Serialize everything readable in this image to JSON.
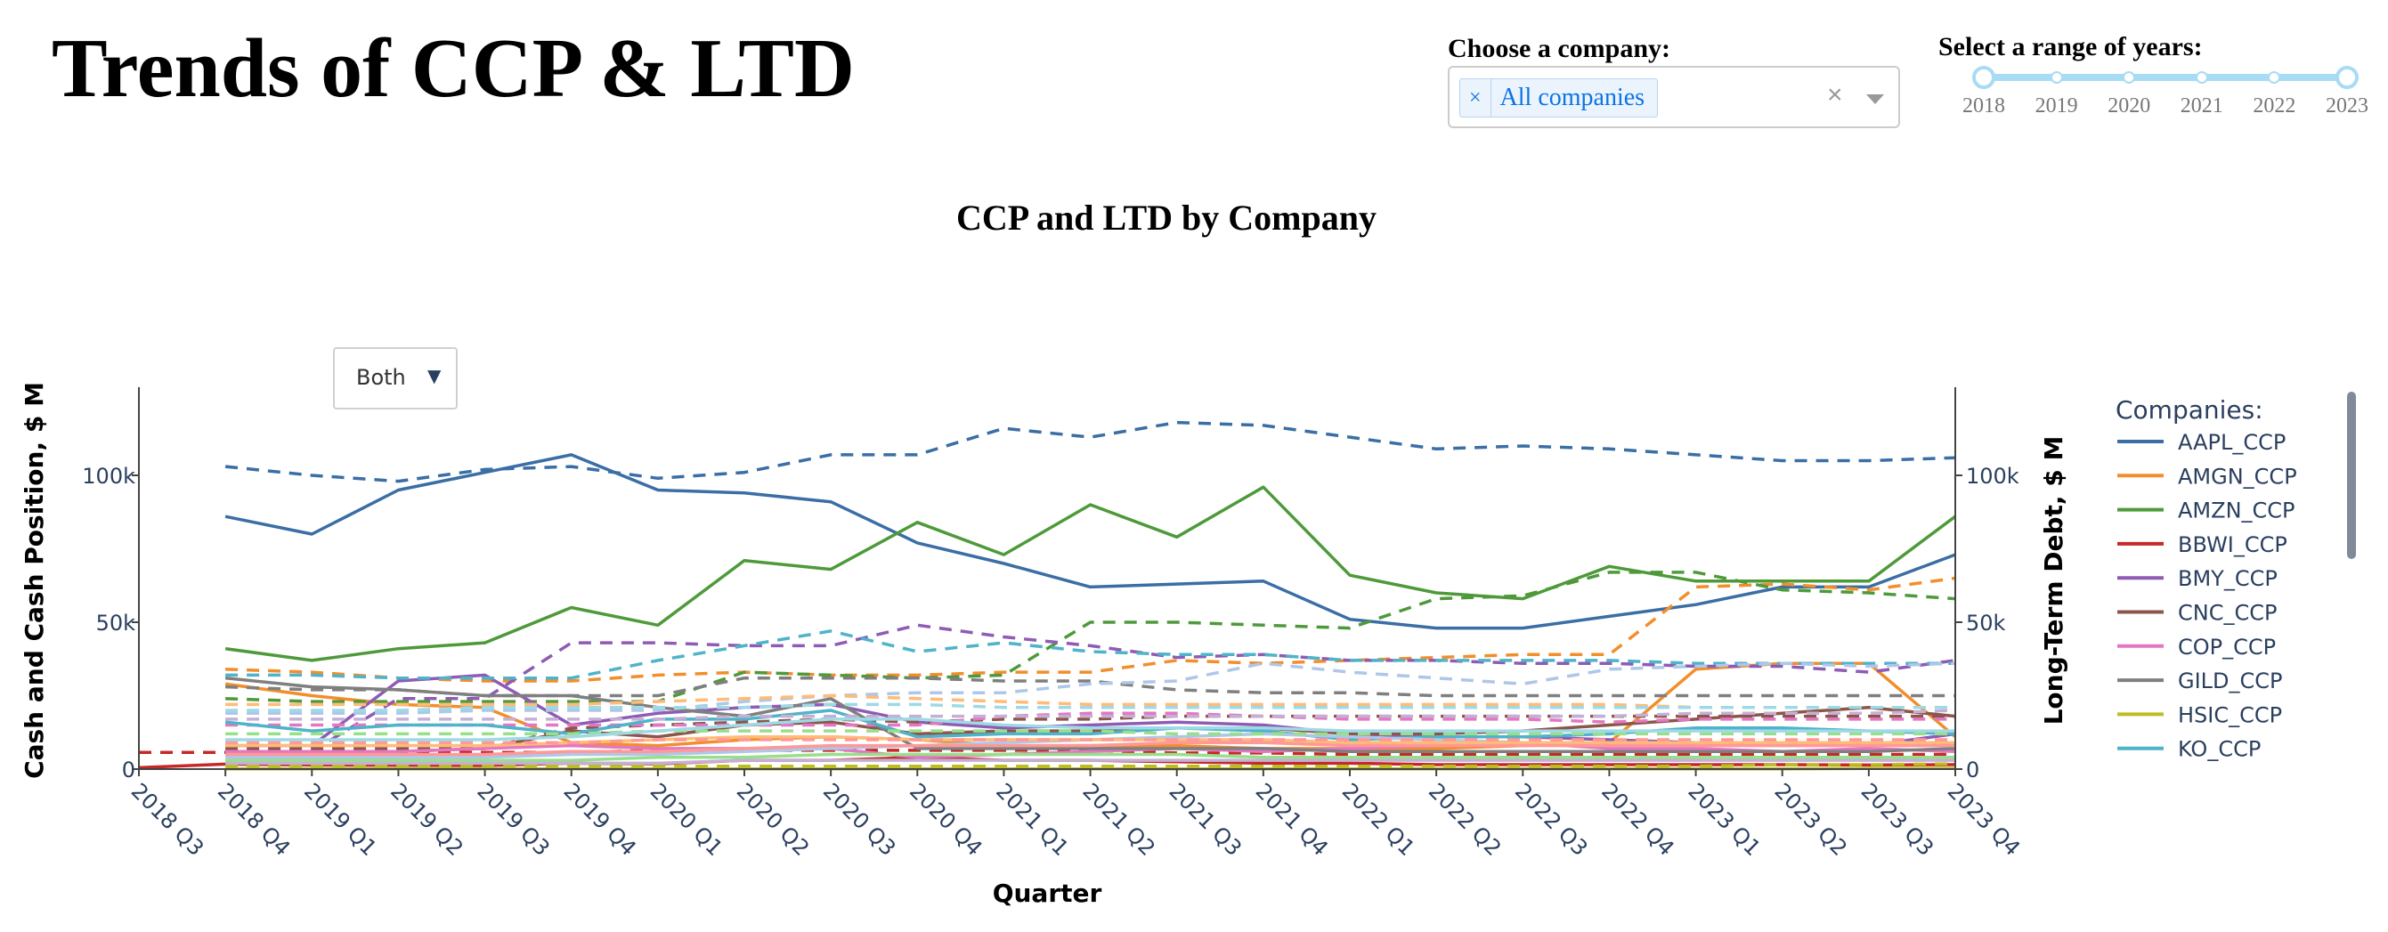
{
  "header": {
    "title": "Trends of CCP & LTD",
    "company_label": "Choose a company:",
    "company_chip": "All companies",
    "chip_remove": "×",
    "clear": "×",
    "years_label": "Select a range of years:",
    "year_marks": [
      "2018",
      "2019",
      "2020",
      "2021",
      "2022",
      "2023"
    ],
    "year_range": [
      "2018",
      "2023"
    ]
  },
  "toggle": {
    "label": "Both",
    "caret": "▼"
  },
  "colors": {
    "AAPL": "#3a6ea5",
    "AMGN": "#f28e2b",
    "AMZN": "#4e9a3a",
    "BBWI": "#c62828",
    "BMY": "#8e5bb5",
    "CNC": "#8c564b",
    "COP": "#e377c2",
    "GILD": "#7f7f7f",
    "HSIC": "#bcbd22",
    "KO": "#4fb3c9",
    "L1": "#aec7e8",
    "L2": "#ffbb78",
    "L3": "#98df8a",
    "L4": "#ff9896",
    "L5": "#c5b0d5",
    "L6": "#9edae5"
  },
  "chart_data": {
    "type": "line",
    "title": "CCP and LTD by Company",
    "xlabel": "Quarter",
    "ylabel_left": "Cash and Cash Position, $ M",
    "ylabel_right": "Long-Term Debt, $ M",
    "ylim_left": [
      0,
      130000
    ],
    "ylim_right": [
      0,
      130000
    ],
    "yticks": [
      0,
      50000,
      100000
    ],
    "ytick_labels": [
      "0",
      "50k",
      "100k"
    ],
    "x_range": [
      "2018 Q3",
      "2023 Q4"
    ],
    "categories": [
      "2018 Q3",
      "2018 Q4",
      "2019 Q1",
      "2019 Q2",
      "2019 Q3",
      "2019 Q4",
      "2020 Q1",
      "2020 Q2",
      "2020 Q3",
      "2020 Q4",
      "2021 Q1",
      "2021 Q2",
      "2021 Q3",
      "2021 Q4",
      "2022 Q1",
      "2022 Q2",
      "2022 Q3",
      "2022 Q4",
      "2023 Q1",
      "2023 Q2",
      "2023 Q3",
      "2023 Q4"
    ],
    "legend_title": "Companies:",
    "legend_entries": [
      "AAPL_CCP",
      "AMGN_CCP",
      "AMZN_CCP",
      "BBWI_CCP",
      "BMY_CCP",
      "CNC_CCP",
      "COP_CCP",
      "GILD_CCP",
      "HSIC_CCP",
      "KO_CCP"
    ],
    "legend_position": "right",
    "series": [
      {
        "name": "AAPL_CCP",
        "axis": "left",
        "dash": false,
        "color_key": "AAPL",
        "values": [
          null,
          86000,
          80000,
          95000,
          101000,
          107000,
          95000,
          94000,
          91000,
          77000,
          70000,
          62000,
          63000,
          64000,
          51000,
          48000,
          48000,
          52000,
          56000,
          62000,
          62000,
          73000
        ]
      },
      {
        "name": "AAPL_LTD",
        "axis": "right",
        "dash": true,
        "color_key": "AAPL",
        "values": [
          null,
          103000,
          100000,
          98000,
          102000,
          103000,
          99000,
          101000,
          107000,
          107000,
          116000,
          113000,
          118000,
          117000,
          113000,
          109000,
          110000,
          109000,
          107000,
          105000,
          105000,
          106000
        ]
      },
      {
        "name": "AMGN_CCP",
        "axis": "left",
        "dash": false,
        "color_key": "AMGN",
        "values": [
          null,
          29000,
          25000,
          22000,
          21000,
          9000,
          8000,
          10000,
          11000,
          10000,
          8000,
          8000,
          8000,
          7000,
          7000,
          7000,
          8000,
          9000,
          34000,
          36000,
          36000,
          11000
        ]
      },
      {
        "name": "AMGN_LTD",
        "axis": "right",
        "dash": true,
        "color_key": "AMGN",
        "values": [
          null,
          34000,
          33000,
          31000,
          30000,
          30000,
          32000,
          33000,
          32000,
          32000,
          33000,
          33000,
          37000,
          36000,
          37000,
          38000,
          39000,
          39000,
          62000,
          63000,
          61000,
          65000
        ]
      },
      {
        "name": "AMZN_CCP",
        "axis": "left",
        "dash": false,
        "color_key": "AMZN",
        "values": [
          null,
          41000,
          37000,
          41000,
          43000,
          55000,
          49000,
          71000,
          68000,
          84000,
          73000,
          90000,
          79000,
          96000,
          66000,
          60000,
          58000,
          69000,
          64000,
          64000,
          64000,
          86000
        ]
      },
      {
        "name": "AMZN_LTD",
        "axis": "right",
        "dash": true,
        "color_key": "AMZN",
        "values": [
          null,
          24000,
          23000,
          23000,
          23000,
          23000,
          23000,
          33000,
          32000,
          31000,
          32000,
          50000,
          50000,
          49000,
          48000,
          58000,
          59000,
          67000,
          67000,
          61000,
          60000,
          58000
        ]
      },
      {
        "name": "BBWI_CCP",
        "axis": "left",
        "dash": false,
        "color_key": "BBWI",
        "values": [
          500,
          1700,
          1400,
          1300,
          1200,
          2000,
          1800,
          3000,
          3000,
          4000,
          3000,
          3000,
          2500,
          2000,
          2000,
          1500,
          1500,
          1500,
          1500,
          1500,
          1400,
          1500
        ]
      },
      {
        "name": "BBWI_LTD",
        "axis": "right",
        "dash": true,
        "color_key": "BBWI",
        "values": [
          5700,
          5700,
          5700,
          5700,
          5700,
          5700,
          6400,
          6400,
          6400,
          6400,
          6400,
          6400,
          5500,
          5500,
          5000,
          5000,
          5000,
          5000,
          5000,
          5000,
          5000,
          5000
        ]
      },
      {
        "name": "BMY_CCP",
        "axis": "left",
        "dash": false,
        "color_key": "BMY",
        "values": [
          null,
          8000,
          8000,
          30000,
          32000,
          15000,
          19000,
          21000,
          22000,
          16000,
          14000,
          15000,
          16000,
          15000,
          12000,
          11000,
          11000,
          10000,
          9000,
          9000,
          8000,
          12000
        ]
      },
      {
        "name": "BMY_LTD",
        "axis": "right",
        "dash": true,
        "color_key": "BMY",
        "values": [
          null,
          6000,
          6000,
          24000,
          24000,
          43000,
          43000,
          42000,
          42000,
          49000,
          45000,
          42000,
          38000,
          39000,
          37000,
          37000,
          36000,
          36000,
          35000,
          35000,
          33000,
          37000
        ]
      },
      {
        "name": "CNC_CCP",
        "axis": "left",
        "dash": false,
        "color_key": "CNC",
        "values": [
          null,
          6000,
          6000,
          6000,
          7000,
          13000,
          11000,
          15000,
          16000,
          12000,
          13000,
          13000,
          14000,
          14000,
          12000,
          12000,
          13000,
          15000,
          17000,
          19000,
          21000,
          18000
        ]
      },
      {
        "name": "CNC_LTD",
        "axis": "right",
        "dash": true,
        "color_key": "CNC",
        "values": [
          null,
          7000,
          7000,
          7000,
          7000,
          14000,
          15000,
          16000,
          17000,
          16000,
          17000,
          17000,
          18000,
          18000,
          18000,
          18000,
          18000,
          18000,
          18000,
          18000,
          18000,
          18000
        ]
      },
      {
        "name": "COP_CCP",
        "axis": "left",
        "dash": false,
        "color_key": "COP",
        "values": [
          null,
          6000,
          6000,
          6000,
          7000,
          8000,
          7000,
          7000,
          7000,
          4000,
          5000,
          6000,
          7000,
          6000,
          7000,
          8000,
          9000,
          7000,
          7000,
          6000,
          7000,
          6000
        ]
      },
      {
        "name": "COP_LTD",
        "axis": "right",
        "dash": true,
        "color_key": "COP",
        "values": [
          null,
          15000,
          15000,
          15000,
          15000,
          15000,
          15000,
          15000,
          15000,
          15000,
          18000,
          19000,
          19000,
          18000,
          17000,
          17000,
          17000,
          16000,
          17000,
          17000,
          17000,
          17000
        ]
      },
      {
        "name": "GILD_CCP",
        "axis": "left",
        "dash": false,
        "color_key": "GILD",
        "values": [
          null,
          31000,
          28000,
          27000,
          25000,
          25000,
          21000,
          18000,
          24000,
          7000,
          7000,
          7000,
          7000,
          7000,
          6000,
          6000,
          6000,
          6000,
          6000,
          6000,
          6000,
          7000
        ]
      },
      {
        "name": "GILD_LTD",
        "axis": "right",
        "dash": true,
        "color_key": "GILD",
        "values": [
          null,
          28000,
          27000,
          27000,
          25000,
          25000,
          25000,
          31000,
          31000,
          31000,
          30000,
          30000,
          27000,
          26000,
          26000,
          25000,
          25000,
          25000,
          25000,
          25000,
          25000,
          25000
        ]
      },
      {
        "name": "HSIC_CCP",
        "axis": "left",
        "dash": false,
        "color_key": "HSIC",
        "values": [
          null,
          100,
          100,
          100,
          100,
          100,
          100,
          100,
          100,
          100,
          100,
          100,
          100,
          100,
          100,
          100,
          100,
          100,
          100,
          100,
          200,
          200
        ]
      },
      {
        "name": "HSIC_LTD",
        "axis": "right",
        "dash": true,
        "color_key": "HSIC",
        "values": [
          null,
          1000,
          1000,
          1000,
          1000,
          1000,
          1000,
          1000,
          1000,
          1000,
          1000,
          1000,
          1000,
          1000,
          1000,
          1000,
          1000,
          1000,
          1000,
          1500,
          1500,
          1800
        ]
      },
      {
        "name": "KO_CCP",
        "axis": "left",
        "dash": false,
        "color_key": "KO",
        "values": [
          null,
          16000,
          13000,
          15000,
          15000,
          12000,
          17000,
          17000,
          20000,
          11000,
          12000,
          12000,
          14000,
          13000,
          10000,
          11000,
          11000,
          12000,
          14000,
          14000,
          13000,
          12000
        ]
      },
      {
        "name": "KO_LTD",
        "axis": "right",
        "dash": true,
        "color_key": "KO",
        "values": [
          null,
          32000,
          32000,
          31000,
          31000,
          31000,
          37000,
          42000,
          47000,
          40000,
          43000,
          40000,
          39000,
          39000,
          37000,
          37000,
          37000,
          37000,
          36000,
          36000,
          36000,
          36000
        ]
      },
      {
        "axis": "left",
        "dash": false,
        "color_key": "L1",
        "values": [
          null,
          4000,
          4000,
          4000,
          4000,
          5000,
          5000,
          6000,
          7000,
          8000,
          9000,
          10000,
          11000,
          12000,
          11000,
          10000,
          9000,
          9000,
          9000,
          9000,
          9000,
          9000
        ]
      },
      {
        "axis": "right",
        "dash": true,
        "color_key": "L1",
        "values": [
          null,
          19000,
          19000,
          19000,
          20000,
          20000,
          20000,
          23000,
          25000,
          26000,
          26000,
          29000,
          30000,
          36000,
          33000,
          31000,
          29000,
          34000,
          35000,
          36000,
          35000,
          36000
        ]
      },
      {
        "axis": "left",
        "dash": false,
        "color_key": "L2",
        "values": [
          null,
          8000,
          8000,
          8000,
          8000,
          9000,
          10000,
          11000,
          11000,
          10000,
          10000,
          10000,
          10000,
          10000,
          9000,
          9000,
          9000,
          9000,
          9000,
          9000,
          9000,
          9000
        ]
      },
      {
        "axis": "right",
        "dash": true,
        "color_key": "L2",
        "values": [
          null,
          22000,
          22000,
          22000,
          22000,
          22000,
          23000,
          24000,
          25000,
          24000,
          23000,
          22000,
          22000,
          22000,
          22000,
          22000,
          22000,
          22000,
          21000,
          21000,
          21000,
          21000
        ]
      },
      {
        "axis": "left",
        "dash": false,
        "color_key": "L3",
        "values": [
          null,
          3000,
          3000,
          3000,
          3000,
          3000,
          4000,
          4000,
          5000,
          5000,
          5000,
          5000,
          5000,
          4000,
          4000,
          4000,
          4000,
          4000,
          4000,
          4000,
          4000,
          4000
        ]
      },
      {
        "axis": "right",
        "dash": true,
        "color_key": "L3",
        "values": [
          null,
          12000,
          12000,
          12000,
          12000,
          12000,
          13000,
          13000,
          13000,
          13000,
          13000,
          13000,
          12000,
          12000,
          12000,
          12000,
          12000,
          12000,
          12000,
          12000,
          12000,
          12000
        ]
      },
      {
        "axis": "left",
        "dash": false,
        "color_key": "L4",
        "values": [
          null,
          5000,
          5000,
          5000,
          5000,
          6000,
          6000,
          7000,
          8000,
          8000,
          8000,
          8000,
          9000,
          9000,
          8000,
          8000,
          8000,
          8000,
          8000,
          8000,
          8000,
          8000
        ]
      },
      {
        "axis": "right",
        "dash": true,
        "color_key": "L4",
        "values": [
          null,
          9000,
          9000,
          9000,
          9000,
          9000,
          10000,
          10000,
          10000,
          10000,
          10000,
          10000,
          10000,
          10000,
          10000,
          10000,
          10000,
          10000,
          10000,
          10000,
          10000,
          10000
        ]
      },
      {
        "axis": "left",
        "dash": false,
        "color_key": "L5",
        "values": [
          null,
          2000,
          2000,
          2000,
          2000,
          2000,
          2000,
          3000,
          3000,
          3000,
          3000,
          3000,
          3000,
          3000,
          3000,
          3000,
          3000,
          3000,
          3000,
          3000,
          3000,
          3000
        ]
      },
      {
        "axis": "right",
        "dash": true,
        "color_key": "L5",
        "values": [
          null,
          17000,
          17000,
          17000,
          17000,
          17000,
          17000,
          18000,
          18000,
          18000,
          18000,
          18000,
          18000,
          18000,
          18000,
          18000,
          18000,
          18000,
          19000,
          19000,
          19000,
          20000
        ]
      },
      {
        "axis": "left",
        "dash": false,
        "color_key": "L6",
        "values": [
          null,
          10000,
          10000,
          10000,
          10000,
          11000,
          13000,
          15000,
          17000,
          17000,
          15000,
          14000,
          14000,
          14000,
          13000,
          13000,
          13000,
          13000,
          13000,
          13000,
          13000,
          13000
        ]
      },
      {
        "axis": "right",
        "dash": true,
        "color_key": "L6",
        "values": [
          null,
          20000,
          20000,
          20000,
          21000,
          21000,
          21000,
          21000,
          22000,
          22000,
          21000,
          21000,
          21000,
          21000,
          21000,
          21000,
          21000,
          21000,
          21000,
          21000,
          21000,
          21000
        ]
      }
    ]
  }
}
